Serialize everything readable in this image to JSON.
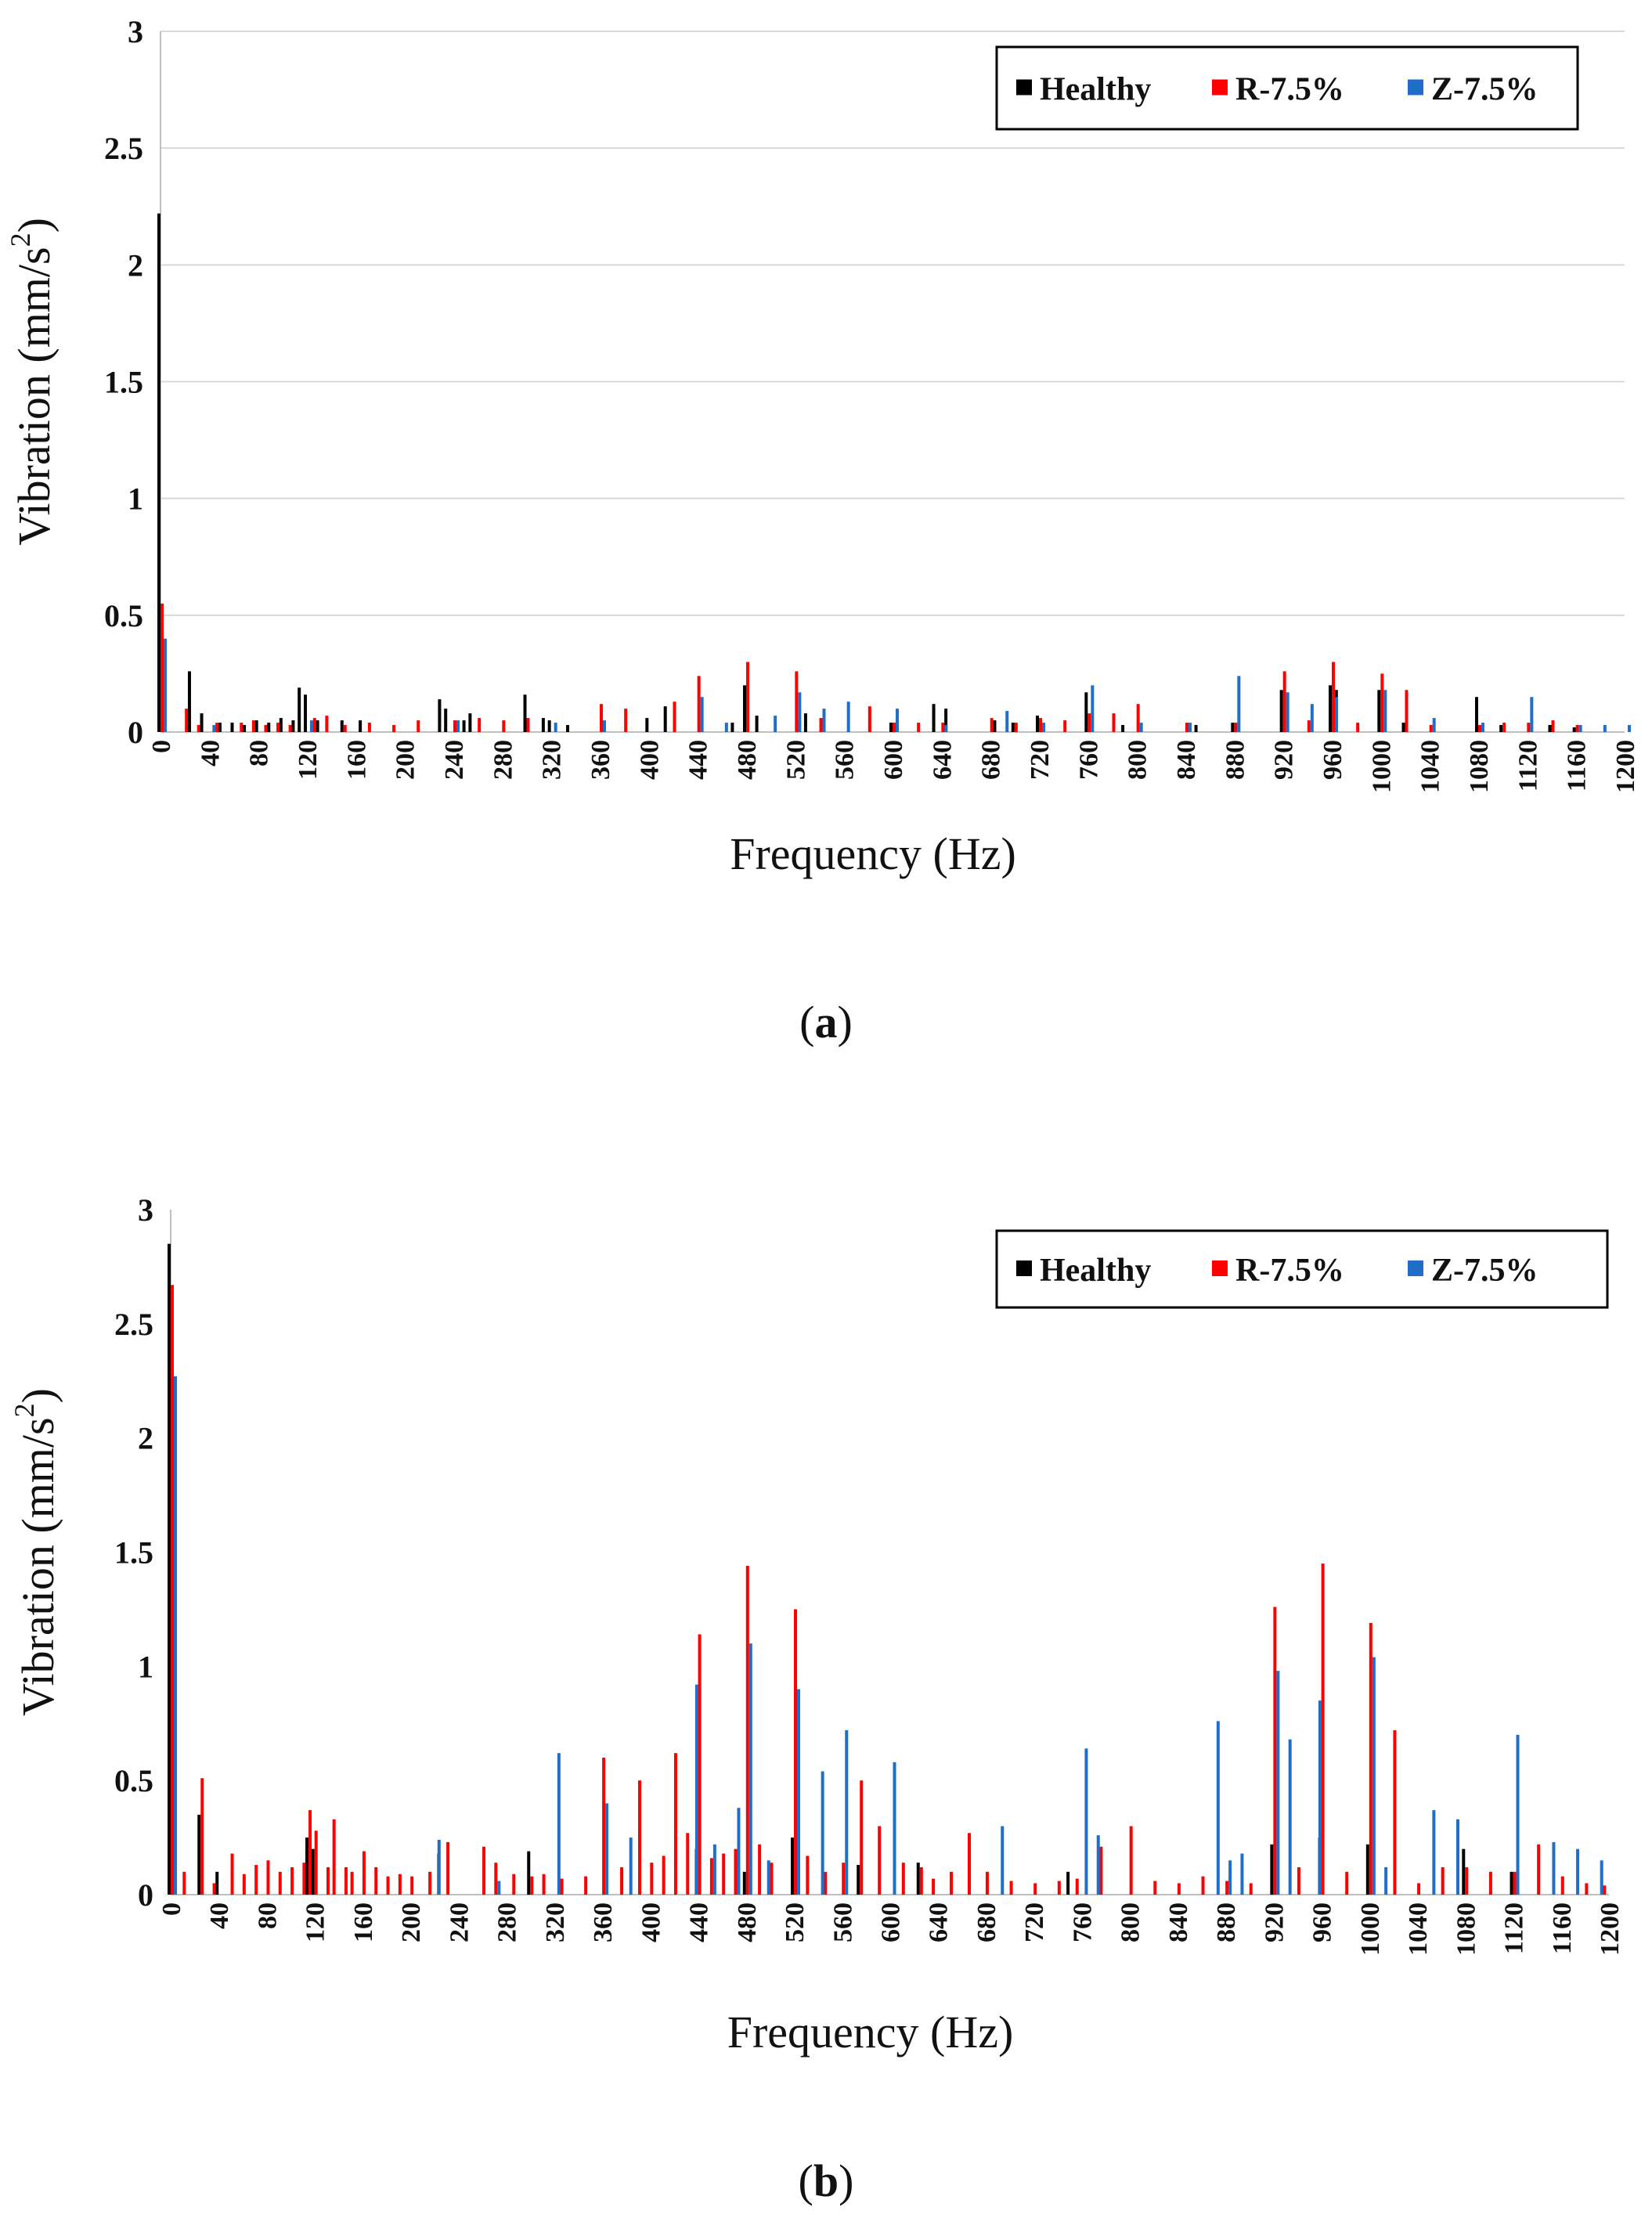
{
  "figure": {
    "captions": {
      "a": "a",
      "b": "b"
    }
  },
  "chart_data": [
    {
      "id": "a",
      "type": "bar",
      "title": "",
      "caption": "a",
      "xlabel": "Frequency (Hz)",
      "ylabel": "Vibration (mm/s2)",
      "ylabel_main": "Vibration (mm/s",
      "ylabel_sup": "2",
      "ylabel_tail": ")",
      "ylim": [
        0,
        3
      ],
      "xlim": [
        0,
        1200
      ],
      "y_ticks": [
        "0",
        "0.5",
        "1",
        "1.5",
        "2",
        "2.5",
        "3"
      ],
      "x_ticks": [
        "0",
        "40",
        "80",
        "120",
        "160",
        "200",
        "240",
        "280",
        "320",
        "360",
        "400",
        "440",
        "480",
        "520",
        "560",
        "600",
        "640",
        "680",
        "720",
        "760",
        "800",
        "840",
        "880",
        "920",
        "960",
        "1000",
        "1040",
        "1080",
        "1120",
        "1160",
        "1200"
      ],
      "grid": true,
      "legend_position": "top-right",
      "series": [
        {
          "name": "Healthy",
          "color": "#000000",
          "x": [
            0,
            25,
            35,
            50,
            60,
            70,
            80,
            90,
            100,
            110,
            115,
            120,
            130,
            150,
            165,
            230,
            235,
            250,
            255,
            300,
            315,
            320,
            335,
            400,
            415,
            470,
            480,
            490,
            525,
            530,
            545,
            600,
            635,
            645,
            685,
            700,
            720,
            760,
            790,
            850,
            880,
            920,
            960,
            965,
            1000,
            1020,
            1080,
            1100,
            1140,
            1160
          ],
          "values": [
            2.22,
            0.26,
            0.08,
            0.04,
            0.04,
            0.03,
            0.05,
            0.04,
            0.06,
            0.05,
            0.19,
            0.16,
            0.05,
            0.05,
            0.05,
            0.14,
            0.1,
            0.05,
            0.08,
            0.16,
            0.06,
            0.05,
            0.03,
            0.06,
            0.11,
            0.04,
            0.2,
            0.07,
            0.05,
            0.08,
            0.04,
            0.04,
            0.12,
            0.1,
            0.05,
            0.04,
            0.07,
            0.17,
            0.03,
            0.03,
            0.04,
            0.18,
            0.2,
            0.18,
            0.18,
            0.04,
            0.15,
            0.03,
            0.03,
            0.02
          ]
        },
        {
          "name": "R-7.5%",
          "color": "#ff0000",
          "x": [
            0,
            20,
            30,
            45,
            65,
            75,
            85,
            95,
            105,
            125,
            135,
            150,
            170,
            190,
            210,
            240,
            260,
            280,
            300,
            360,
            380,
            420,
            440,
            480,
            520,
            540,
            580,
            600,
            620,
            640,
            680,
            700,
            720,
            740,
            760,
            780,
            800,
            840,
            880,
            920,
            940,
            960,
            980,
            1000,
            1020,
            1040,
            1080,
            1100,
            1120,
            1140,
            1160
          ],
          "values": [
            0.55,
            0.1,
            0.03,
            0.04,
            0.04,
            0.05,
            0.03,
            0.04,
            0.03,
            0.06,
            0.07,
            0.03,
            0.04,
            0.03,
            0.05,
            0.05,
            0.06,
            0.05,
            0.06,
            0.12,
            0.1,
            0.13,
            0.24,
            0.3,
            0.26,
            0.06,
            0.11,
            0.04,
            0.04,
            0.04,
            0.06,
            0.04,
            0.06,
            0.05,
            0.08,
            0.08,
            0.12,
            0.04,
            0.04,
            0.26,
            0.05,
            0.3,
            0.04,
            0.25,
            0.18,
            0.03,
            0.03,
            0.04,
            0.04,
            0.05,
            0.03
          ]
        },
        {
          "name": "Z-7.5%",
          "color": "#1f6fc8",
          "x": [
            0,
            40,
            120,
            240,
            320,
            360,
            440,
            460,
            500,
            520,
            540,
            560,
            600,
            640,
            690,
            720,
            760,
            800,
            840,
            880,
            920,
            940,
            960,
            1000,
            1040,
            1080,
            1120,
            1160,
            1180,
            1200
          ],
          "values": [
            0.4,
            0.03,
            0.05,
            0.05,
            0.04,
            0.05,
            0.15,
            0.04,
            0.07,
            0.17,
            0.1,
            0.13,
            0.1,
            0.03,
            0.09,
            0.04,
            0.2,
            0.04,
            0.04,
            0.24,
            0.17,
            0.12,
            0.15,
            0.18,
            0.06,
            0.04,
            0.15,
            0.03,
            0.03,
            0.03
          ]
        }
      ]
    },
    {
      "id": "b",
      "type": "bar",
      "title": "",
      "caption": "b",
      "xlabel": "Frequency (Hz)",
      "ylabel": "Vibration (mm/s2)",
      "ylabel_main": "Vibration (mm/s",
      "ylabel_sup": "2",
      "ylabel_tail": ")",
      "ylim": [
        0,
        3
      ],
      "xlim": [
        0,
        1200
      ],
      "y_ticks": [
        "0",
        "0.5",
        "1",
        "1.5",
        "2",
        "2.5",
        "3"
      ],
      "x_ticks": [
        "0",
        "40",
        "80",
        "120",
        "160",
        "200",
        "240",
        "280",
        "320",
        "360",
        "400",
        "440",
        "480",
        "520",
        "560",
        "600",
        "640",
        "680",
        "720",
        "760",
        "800",
        "840",
        "880",
        "920",
        "960",
        "1000",
        "1040",
        "1080",
        "1120",
        "1160",
        "1200"
      ],
      "grid": false,
      "legend_position": "top-right",
      "series": [
        {
          "name": "Healthy",
          "color": "#000000",
          "x": [
            0,
            25,
            40,
            115,
            120,
            225,
            300,
            440,
            480,
            520,
            575,
            625,
            750,
            920,
            960,
            1000,
            1080,
            1120
          ],
          "values": [
            2.85,
            0.35,
            0.1,
            0.25,
            0.2,
            0.18,
            0.19,
            0.2,
            0.1,
            0.25,
            0.13,
            0.14,
            0.1,
            0.22,
            0.25,
            0.22,
            0.2,
            0.1
          ]
        },
        {
          "name": "R-7.5%",
          "color": "#ff0000",
          "x": [
            0,
            10,
            25,
            35,
            50,
            60,
            70,
            80,
            90,
            100,
            110,
            115,
            120,
            130,
            135,
            145,
            150,
            160,
            170,
            180,
            190,
            200,
            215,
            230,
            260,
            270,
            285,
            300,
            310,
            325,
            345,
            360,
            375,
            390,
            400,
            410,
            420,
            430,
            440,
            450,
            460,
            470,
            480,
            490,
            500,
            520,
            530,
            545,
            560,
            575,
            590,
            610,
            625,
            635,
            650,
            665,
            680,
            700,
            720,
            740,
            755,
            775,
            800,
            820,
            840,
            860,
            880,
            900,
            920,
            940,
            960,
            980,
            1000,
            1020,
            1040,
            1060,
            1080,
            1100,
            1120,
            1140,
            1160,
            1180,
            1195
          ],
          "values": [
            2.67,
            0.1,
            0.51,
            0.05,
            0.18,
            0.09,
            0.13,
            0.15,
            0.1,
            0.12,
            0.14,
            0.37,
            0.28,
            0.12,
            0.33,
            0.12,
            0.1,
            0.19,
            0.12,
            0.08,
            0.09,
            0.08,
            0.1,
            0.23,
            0.21,
            0.14,
            0.09,
            0.08,
            0.09,
            0.07,
            0.08,
            0.6,
            0.12,
            0.5,
            0.14,
            0.17,
            0.62,
            0.27,
            1.14,
            0.16,
            0.18,
            0.2,
            1.44,
            0.22,
            0.14,
            1.25,
            0.17,
            0.1,
            0.14,
            0.5,
            0.3,
            0.14,
            0.12,
            0.07,
            0.1,
            0.27,
            0.1,
            0.06,
            0.05,
            0.06,
            0.07,
            0.21,
            0.3,
            0.06,
            0.05,
            0.08,
            0.06,
            0.05,
            1.26,
            0.12,
            1.45,
            0.1,
            1.19,
            0.72,
            0.05,
            0.12,
            0.12,
            0.1,
            0.1,
            0.22,
            0.08,
            0.05,
            0.04
          ]
        },
        {
          "name": "Z-7.5%",
          "color": "#1f6fc8",
          "x": [
            0,
            220,
            270,
            320,
            360,
            380,
            435,
            450,
            470,
            480,
            495,
            520,
            540,
            560,
            600,
            690,
            760,
            770,
            870,
            880,
            890,
            920,
            930,
            955,
            1000,
            1010,
            1050,
            1070,
            1120,
            1150,
            1170,
            1190
          ],
          "values": [
            2.27,
            0.24,
            0.06,
            0.62,
            0.4,
            0.25,
            0.92,
            0.22,
            0.38,
            1.1,
            0.15,
            0.9,
            0.54,
            0.72,
            0.58,
            0.3,
            0.64,
            0.26,
            0.76,
            0.15,
            0.18,
            0.98,
            0.68,
            0.85,
            1.04,
            0.12,
            0.37,
            0.33,
            0.7,
            0.23,
            0.2,
            0.15
          ]
        }
      ]
    }
  ]
}
